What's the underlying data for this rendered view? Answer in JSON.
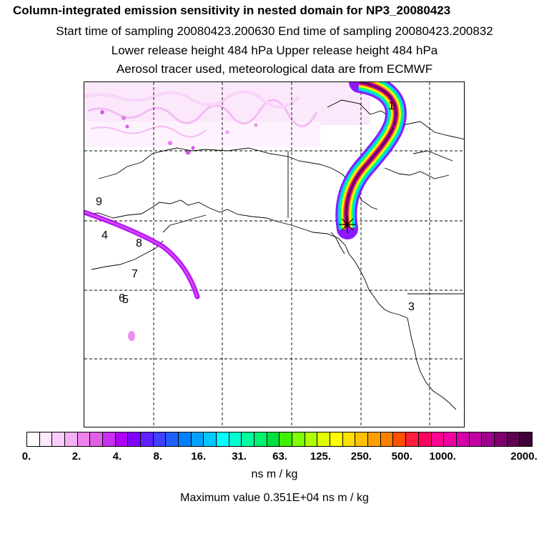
{
  "titles": {
    "main": "Column-integrated emission sensitivity in nested domain for NP3_20080423",
    "sampling": "Start time of sampling 20080423.200630     End time of sampling 20080423.200832",
    "release": "Lower release height  484 hPa        Upper release height  484 hPa",
    "source": "Aerosol tracer used, meteorological data are from ECMWF"
  },
  "map": {
    "labels": [
      "1",
      "9",
      "4",
      "8",
      "7",
      "6",
      "5",
      "3"
    ],
    "release_marker": "release-point-star"
  },
  "colorbar": {
    "colors": [
      "#ffffff",
      "#fde8fd",
      "#f9cdf9",
      "#f4b0f4",
      "#ec84ec",
      "#e060e8",
      "#c830f0",
      "#b000f8",
      "#8000ff",
      "#6020ff",
      "#4040ff",
      "#2060ff",
      "#0080ff",
      "#00a0ff",
      "#00c8ff",
      "#00ffff",
      "#00ffd0",
      "#00ffa0",
      "#00f070",
      "#00e040",
      "#40f000",
      "#80ff00",
      "#b0ff00",
      "#e0ff00",
      "#ffff00",
      "#ffe000",
      "#ffc000",
      "#ffa000",
      "#ff8000",
      "#ff5000",
      "#ff2040",
      "#ff0060",
      "#ff0090",
      "#f000a0",
      "#d800a8",
      "#c000a0",
      "#a00090",
      "#800070",
      "#600050",
      "#400038"
    ],
    "ticks": [
      "0.",
      "2.",
      "4.",
      "8.",
      "16.",
      "31.",
      "63.",
      "125.",
      "250.",
      "500.",
      "1000.",
      "2000."
    ],
    "unit": "ns m / kg",
    "max_value": "Maximum value  0.351E+04 ns m / kg"
  }
}
